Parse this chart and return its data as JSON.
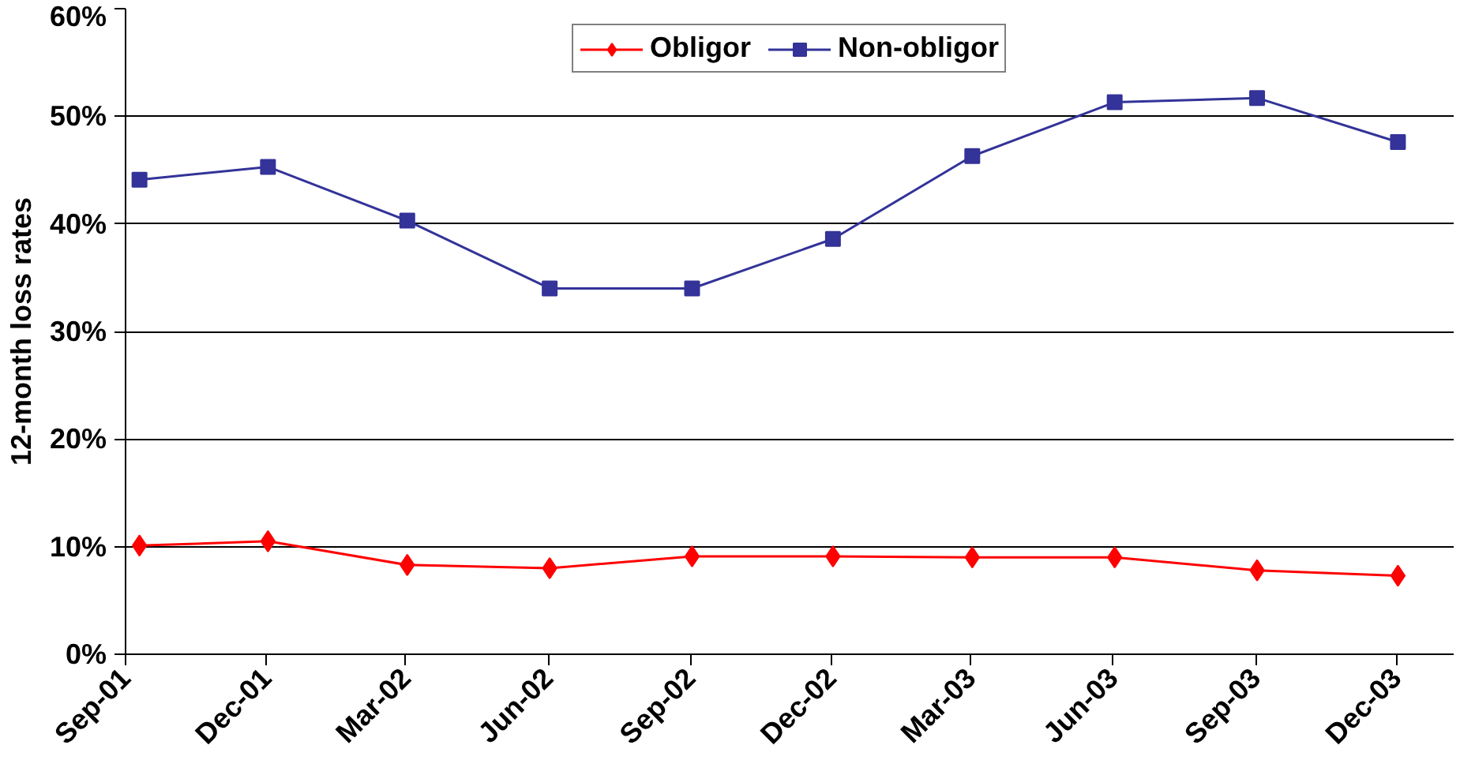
{
  "chart_data": {
    "type": "line",
    "ylabel": "12-month loss rates",
    "x": [
      "2001-09-10",
      "2001-12-02",
      "2002-03-02",
      "2002-06-02",
      "2002-09-02",
      "2002-12-02",
      "2003-03-02",
      "2003-06-02",
      "2003-09-02",
      "2003-12-02"
    ],
    "series": [
      {
        "name": "Obligor",
        "color": "#ff0000",
        "marker": "diamond",
        "values": [
          10.1,
          10.5,
          8.3,
          8.0,
          9.1,
          9.1,
          9.0,
          9.0,
          7.8,
          7.3
        ]
      },
      {
        "name": "Non-obligor",
        "color": "#333399",
        "marker": "square",
        "values": [
          44.1,
          45.3,
          40.3,
          34.0,
          34.0,
          38.6,
          46.3,
          51.3,
          51.7,
          47.6
        ]
      }
    ],
    "xlim": [
      "2001-09-01",
      "2004-01-07"
    ],
    "xticks": [
      {
        "value": "2001-09-01",
        "label": "Sep-01"
      },
      {
        "value": "2001-12-01",
        "label": "Dec-01"
      },
      {
        "value": "2002-03-01",
        "label": "Mar-02"
      },
      {
        "value": "2002-06-01",
        "label": "Jun-02"
      },
      {
        "value": "2002-09-01",
        "label": "Sep-02"
      },
      {
        "value": "2002-12-01",
        "label": "Dec-02"
      },
      {
        "value": "2003-03-01",
        "label": "Mar-03"
      },
      {
        "value": "2003-06-01",
        "label": "Jun-03"
      },
      {
        "value": "2003-09-01",
        "label": "Sep-03"
      },
      {
        "value": "2003-12-01",
        "label": "Dec-03"
      }
    ],
    "ylim": [
      0,
      60
    ],
    "yticks": [
      {
        "value": 0,
        "label": "0%"
      },
      {
        "value": 10,
        "label": "10%"
      },
      {
        "value": 20,
        "label": "20%"
      },
      {
        "value": 30,
        "label": "30%"
      },
      {
        "value": 40,
        "label": "40%"
      },
      {
        "value": 50,
        "label": "50%"
      },
      {
        "value": 60,
        "label": "60%"
      }
    ],
    "grid": "y",
    "legend": "top",
    "line_style": "solid"
  }
}
